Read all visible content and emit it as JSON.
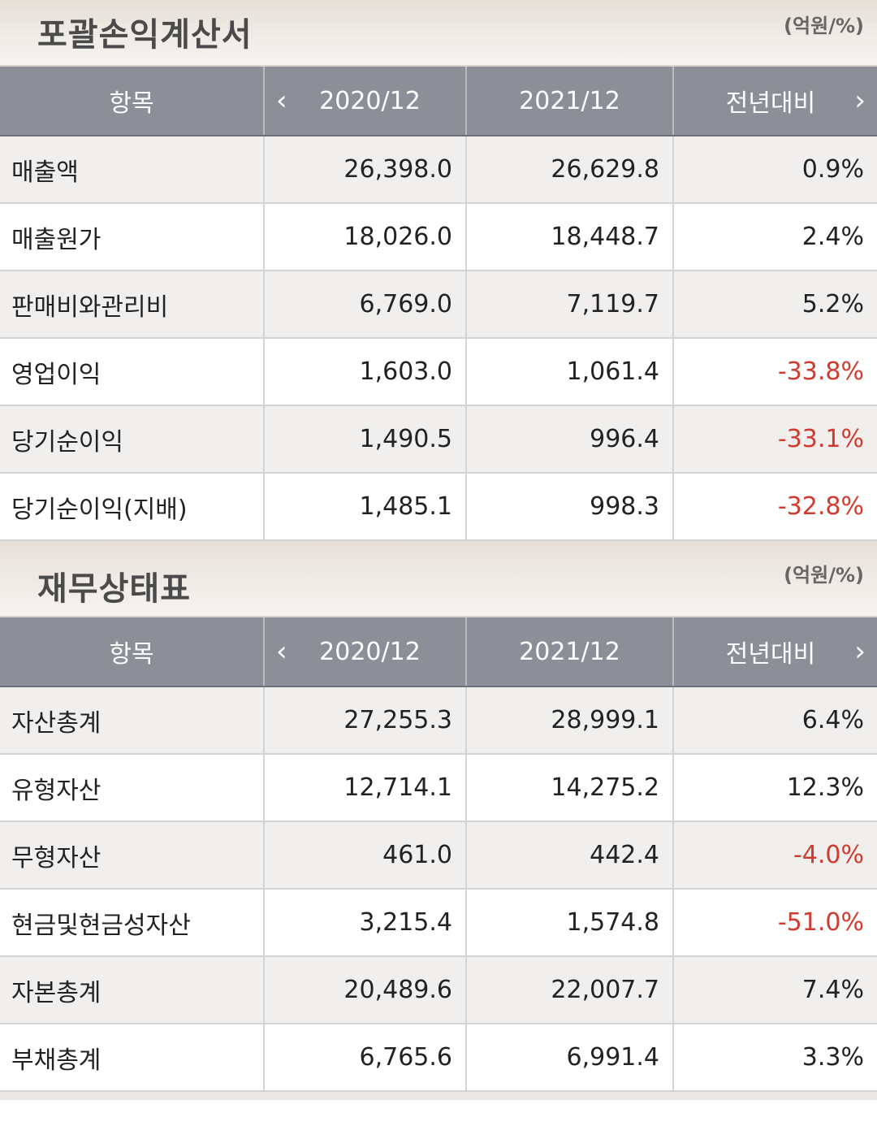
{
  "colors": {
    "header_bg": "#8c8f98",
    "negative": "#d23a2e",
    "row_alt": "#f0efee"
  },
  "income_statement": {
    "title": "포괄손익계산서",
    "unit": "(억원/%)",
    "columns": [
      "항목",
      "2020/12",
      "2021/12",
      "전년대비"
    ],
    "nav_prev_icon": "chevron-left-icon",
    "nav_next_icon": "chevron-right-icon",
    "rows": [
      {
        "item": "매출액",
        "y2020": "26,398.0",
        "y2021": "26,629.8",
        "yoy": "0.9%",
        "negative": false
      },
      {
        "item": "매출원가",
        "y2020": "18,026.0",
        "y2021": "18,448.7",
        "yoy": "2.4%",
        "negative": false
      },
      {
        "item": "판매비와관리비",
        "y2020": "6,769.0",
        "y2021": "7,119.7",
        "yoy": "5.2%",
        "negative": false
      },
      {
        "item": "영업이익",
        "y2020": "1,603.0",
        "y2021": "1,061.4",
        "yoy": "-33.8%",
        "negative": true
      },
      {
        "item": "당기순이익",
        "y2020": "1,490.5",
        "y2021": "996.4",
        "yoy": "-33.1%",
        "negative": true
      },
      {
        "item": "당기순이익(지배)",
        "y2020": "1,485.1",
        "y2021": "998.3",
        "yoy": "-32.8%",
        "negative": true
      }
    ]
  },
  "balance_sheet": {
    "title": "재무상태표",
    "unit": "(억원/%)",
    "columns": [
      "항목",
      "2020/12",
      "2021/12",
      "전년대비"
    ],
    "nav_prev_icon": "chevron-left-icon",
    "nav_next_icon": "chevron-right-icon",
    "rows": [
      {
        "item": "자산총계",
        "y2020": "27,255.3",
        "y2021": "28,999.1",
        "yoy": "6.4%",
        "negative": false
      },
      {
        "item": "유형자산",
        "y2020": "12,714.1",
        "y2021": "14,275.2",
        "yoy": "12.3%",
        "negative": false
      },
      {
        "item": "무형자산",
        "y2020": "461.0",
        "y2021": "442.4",
        "yoy": "-4.0%",
        "negative": true
      },
      {
        "item": "현금및현금성자산",
        "y2020": "3,215.4",
        "y2021": "1,574.8",
        "yoy": "-51.0%",
        "negative": true
      },
      {
        "item": "자본총계",
        "y2020": "20,489.6",
        "y2021": "22,007.7",
        "yoy": "7.4%",
        "negative": false
      },
      {
        "item": "부채총계",
        "y2020": "6,765.6",
        "y2021": "6,991.4",
        "yoy": "3.3%",
        "negative": false
      }
    ]
  }
}
